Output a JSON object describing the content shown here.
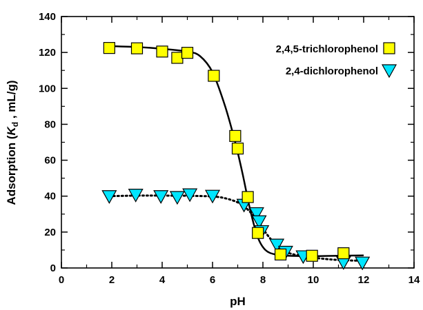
{
  "chart_data": {
    "type": "scatter",
    "title": "",
    "xlabel": "pH",
    "ylabel": {
      "prefix": "Adsorption (",
      "symbol": "K",
      "subscript": "d",
      "suffix": " , mL/g)"
    },
    "xlim": [
      0,
      14
    ],
    "ylim": [
      0,
      140
    ],
    "x_ticks": [
      "0",
      "2",
      "4",
      "6",
      "8",
      "10",
      "12",
      "14"
    ],
    "y_ticks": [
      "0",
      "20",
      "40",
      "60",
      "80",
      "100",
      "120",
      "140"
    ],
    "grid": false,
    "legend_position": "top-right",
    "series": [
      {
        "name": "2,4,5-trichlorophenol",
        "marker": "square",
        "color": "#ffff00",
        "line_style": "solid",
        "points": [
          [
            1.9,
            122.5
          ],
          [
            3.0,
            122.3
          ],
          [
            4.0,
            120.5
          ],
          [
            4.6,
            117.0
          ],
          [
            5.0,
            119.8
          ],
          [
            6.05,
            107.0
          ],
          [
            6.9,
            73.5
          ],
          [
            7.0,
            66.5
          ],
          [
            7.4,
            39.5
          ],
          [
            7.8,
            19.5
          ],
          [
            8.7,
            7.5
          ],
          [
            9.95,
            6.8
          ],
          [
            11.2,
            8.2
          ]
        ],
        "fit": [
          [
            1.9,
            123.5
          ],
          [
            3.0,
            123.0
          ],
          [
            4.0,
            122.0
          ],
          [
            5.0,
            120.5
          ],
          [
            5.5,
            118.0
          ],
          [
            6.0,
            109.0
          ],
          [
            6.5,
            90.0
          ],
          [
            6.9,
            70.0
          ],
          [
            7.2,
            52.0
          ],
          [
            7.5,
            32.0
          ],
          [
            7.8,
            17.0
          ],
          [
            8.1,
            10.0
          ],
          [
            8.5,
            7.5
          ],
          [
            9.0,
            6.8
          ],
          [
            10.0,
            6.6
          ],
          [
            11.0,
            6.8
          ],
          [
            12.0,
            7.0
          ]
        ]
      },
      {
        "name": "2,4-dichlorophenol",
        "marker": "triangle-down",
        "color": "#00e5ff",
        "line_style": "dotted",
        "points": [
          [
            1.9,
            40.0
          ],
          [
            2.95,
            40.8
          ],
          [
            3.95,
            40.0
          ],
          [
            4.6,
            39.5
          ],
          [
            5.1,
            41.0
          ],
          [
            6.0,
            40.2
          ],
          [
            7.25,
            35.2
          ],
          [
            7.75,
            30.5
          ],
          [
            7.85,
            26.0
          ],
          [
            7.95,
            20.5
          ],
          [
            8.55,
            13.0
          ],
          [
            8.9,
            9.0
          ],
          [
            9.6,
            6.5
          ],
          [
            11.2,
            3.2
          ],
          [
            11.95,
            3.0
          ]
        ],
        "fit": [
          [
            1.9,
            40.0
          ],
          [
            3.0,
            40.3
          ],
          [
            4.0,
            40.3
          ],
          [
            5.0,
            40.2
          ],
          [
            6.0,
            39.8
          ],
          [
            6.5,
            38.8
          ],
          [
            7.0,
            36.5
          ],
          [
            7.4,
            32.5
          ],
          [
            7.8,
            26.0
          ],
          [
            8.2,
            18.0
          ],
          [
            8.6,
            12.0
          ],
          [
            9.0,
            8.5
          ],
          [
            9.6,
            6.5
          ],
          [
            10.5,
            5.0
          ],
          [
            11.2,
            4.3
          ],
          [
            12.0,
            4.0
          ]
        ]
      }
    ]
  }
}
